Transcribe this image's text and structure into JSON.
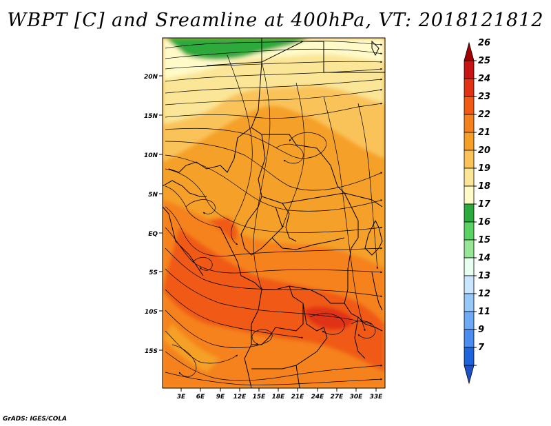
{
  "title": "WBPT [C] and Sreamline at 400hPa, VT: 2018121812",
  "credit": "GrADS: IGES/COLA",
  "map": {
    "lat_ticks": [
      "20N",
      "15N",
      "10N",
      "5N",
      "EQ",
      "5S",
      "10S",
      "15S"
    ],
    "lon_ticks": [
      "3E",
      "6E",
      "9E",
      "12E",
      "15E",
      "18E",
      "21E",
      "24E",
      "27E",
      "30E",
      "33E"
    ]
  },
  "colorbar": {
    "levels": [
      "26",
      "25",
      "24",
      "23",
      "22",
      "21",
      "20",
      "19",
      "18",
      "17",
      "16",
      "15",
      "14",
      "13",
      "12",
      "11",
      "9",
      "7"
    ],
    "colors": [
      "#a00000",
      "#c81414",
      "#e03214",
      "#f05a14",
      "#f5821e",
      "#f5a028",
      "#fac35a",
      "#fae696",
      "#fffac8",
      "#2daa3c",
      "#5ad264",
      "#96e696",
      "#e6fff0",
      "#c8e6ff",
      "#96c8fa",
      "#6eaaf5",
      "#4b8cf0",
      "#1e64dc",
      "#1e50c8"
    ]
  }
}
